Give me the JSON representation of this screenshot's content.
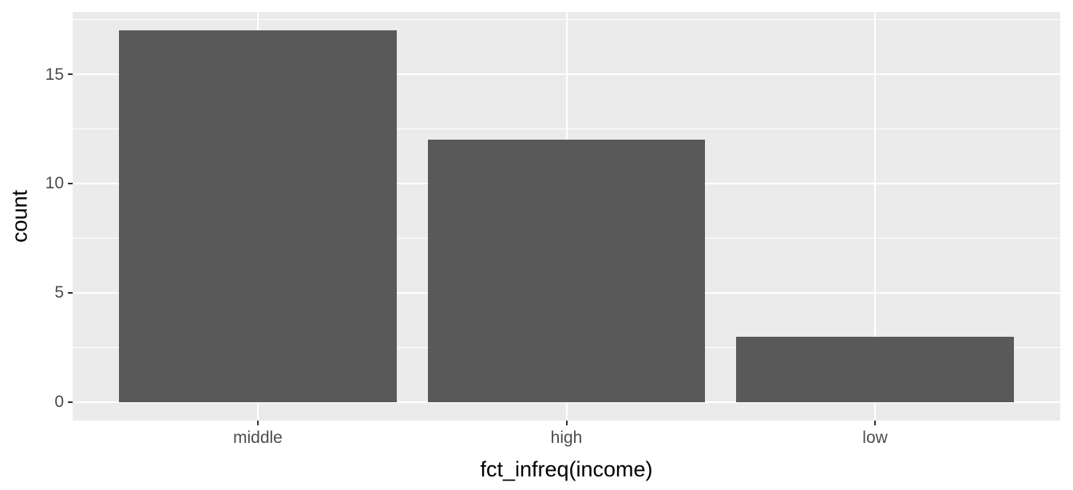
{
  "chart_data": {
    "type": "bar",
    "title": "",
    "categories": [
      "middle",
      "high",
      "low"
    ],
    "values": [
      17,
      12,
      3
    ],
    "xlabel": "fct_infreq(income)",
    "ylabel": "count",
    "ylim": [
      -0.85,
      17.85
    ],
    "yticks": [
      0,
      5,
      10,
      15
    ],
    "ytick_labels": [
      "0",
      "5",
      "10",
      "15"
    ],
    "yticks_minor": [
      2.5,
      7.5,
      12.5,
      17.5
    ],
    "x_range": [
      0.4,
      3.6
    ],
    "bar_width": 0.9,
    "grid": "major+minor horizontal, major vertical",
    "legend": "none",
    "theme": "ggplot2-grey",
    "colors": {
      "page_bg": "#FFFFFF",
      "panel_bg": "#EBEBEB",
      "bar_fill": "#595959",
      "gridline": "#FFFFFF",
      "tick_mark": "#333333",
      "tick_label": "#4D4D4D",
      "axis_title": "#000000"
    }
  }
}
